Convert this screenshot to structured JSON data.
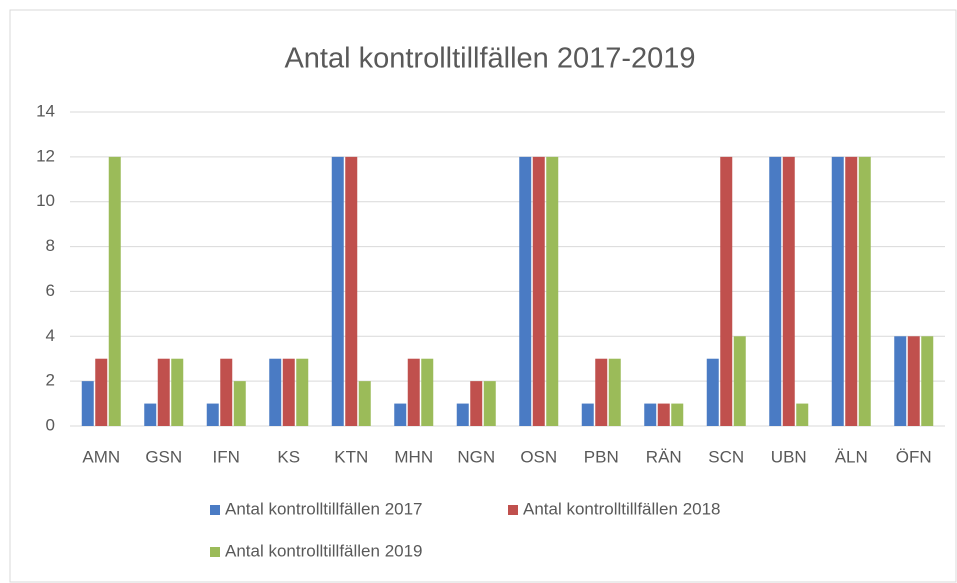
{
  "chart_data": {
    "type": "bar",
    "title": "Antal kontrolltillfällen 2017-2019",
    "categories": [
      "AMN",
      "GSN",
      "IFN",
      "KS",
      "KTN",
      "MHN",
      "NGN",
      "OSN",
      "PBN",
      "RÄN",
      "SCN",
      "UBN",
      "ÄLN",
      "ÖFN"
    ],
    "series": [
      {
        "name": "Antal kontrolltillfällen 2017",
        "color": "#4a7bc4",
        "values": [
          2,
          1,
          1,
          3,
          12,
          1,
          1,
          12,
          1,
          1,
          3,
          12,
          12,
          4
        ]
      },
      {
        "name": "Antal kontrolltillfällen 2018",
        "color": "#c0504d",
        "values": [
          3,
          3,
          3,
          3,
          12,
          3,
          2,
          12,
          3,
          1,
          12,
          12,
          12,
          4
        ]
      },
      {
        "name": "Antal kontrolltillfällen 2019",
        "color": "#9bbb59",
        "values": [
          12,
          3,
          2,
          3,
          2,
          3,
          2,
          12,
          3,
          1,
          4,
          1,
          12,
          4
        ]
      }
    ],
    "ylim": [
      0,
      14
    ],
    "yticks": [
      0,
      2,
      4,
      6,
      8,
      10,
      12,
      14
    ],
    "grid": true,
    "legend": "bottom"
  }
}
